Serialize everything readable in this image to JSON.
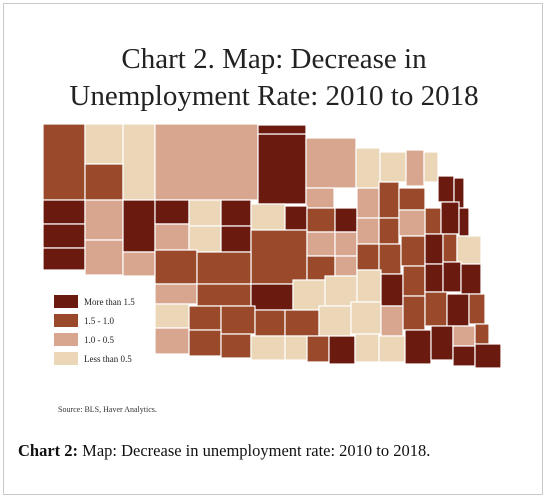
{
  "figure": {
    "title_line1": "Chart 2.  Map: Decrease in",
    "title_line2": "Unemployment Rate: 2010 to 2018",
    "source": "Source: BLS, Haver Analytics.",
    "caption_label": "Chart 2:",
    "caption_text": " Map: Decrease in unemployment rate: 2010 to 2018."
  },
  "legend": [
    {
      "label": "More than 1.5",
      "color": "#6b1a10"
    },
    {
      "label": "1.5 - 1.0",
      "color": "#9a4a2b"
    },
    {
      "label": "1.0 - 0.5",
      "color": "#d8a58f"
    },
    {
      "label": "Less than 0.5",
      "color": "#ecd6b8"
    }
  ],
  "region": "Nebraska counties",
  "colors": {
    "county_border": "#ffffff",
    "frame": "#c9c9c9"
  }
}
